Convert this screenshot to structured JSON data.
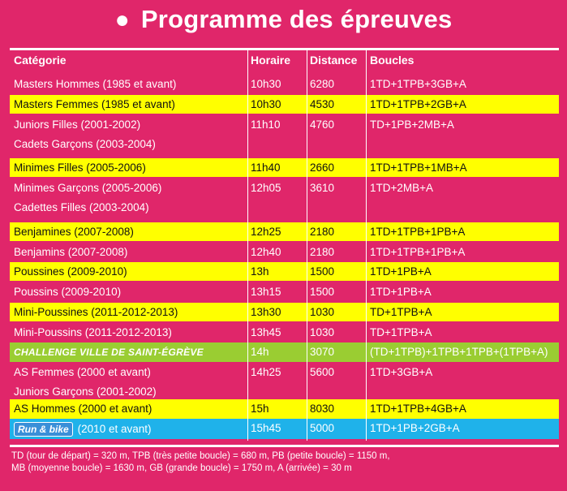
{
  "title": "Programme des épreuves",
  "columns": [
    "Catégorie",
    "Horaire",
    "Distance",
    "Boucles"
  ],
  "rows": [
    {
      "cat": "Masters Hommes (1985 et avant)",
      "cat2": "",
      "time": "10h30",
      "dist": "6280",
      "loops": "1TD+1TPB+3GB+A",
      "hl": "none"
    },
    {
      "cat": "Masters Femmes (1985 et avant)",
      "cat2": "",
      "time": "10h30",
      "dist": "4530",
      "loops": "1TD+1TPB+2GB+A",
      "hl": "yellow"
    },
    {
      "cat": "Juniors Filles (2001-2002)",
      "cat2": "Cadets Garçons (2003-2004)",
      "time": "11h10",
      "dist": "4760",
      "loops": "TD+1PB+2MB+A",
      "hl": "none"
    },
    {
      "cat": "Minimes Filles (2005-2006)",
      "cat2": "",
      "time": "11h40",
      "dist": "2660",
      "loops": "1TD+1TPB+1MB+A",
      "hl": "yellow"
    },
    {
      "cat": "Minimes Garçons (2005-2006)",
      "cat2": "Cadettes Filles (2003-2004)",
      "time": "12h05",
      "dist": "3610",
      "loops": "1TD+2MB+A",
      "hl": "none"
    },
    {
      "cat": "Benjamines (2007-2008)",
      "cat2": "",
      "time": "12h25",
      "dist": "2180",
      "loops": "1TD+1TPB+1PB+A",
      "hl": "yellow"
    },
    {
      "cat": "Benjamins (2007-2008)",
      "cat2": "",
      "time": "12h40",
      "dist": "2180",
      "loops": "1TD+1TPB+1PB+A",
      "hl": "none"
    },
    {
      "cat": "Poussines (2009-2010)",
      "cat2": "",
      "time": "13h",
      "dist": "1500",
      "loops": "1TD+1PB+A",
      "hl": "yellow"
    },
    {
      "cat": "Poussins (2009-2010)",
      "cat2": "",
      "time": "13h15",
      "dist": "1500",
      "loops": "1TD+1PB+A",
      "hl": "none"
    },
    {
      "cat": "Mini-Poussines (2011-2012-2013)",
      "cat2": "",
      "time": "13h30",
      "dist": "1030",
      "loops": "TD+1TPB+A",
      "hl": "yellow"
    },
    {
      "cat": "Mini-Poussins (2011-2012-2013)",
      "cat2": "",
      "time": "13h45",
      "dist": "1030",
      "loops": "TD+1TPB+A",
      "hl": "none"
    },
    {
      "cat": "CHALLENGE VILLE DE SAINT-ÉGRÈVE",
      "cat2": "",
      "time": "14h",
      "dist": "3070",
      "loops": "(TD+1TPB)+1TPB+1TPB+(1TPB+A)",
      "hl": "green"
    },
    {
      "cat": "AS Femmes (2000 et avant)",
      "cat2": "Juniors Garçons (2001-2002)",
      "time": "14h25",
      "dist": "5600",
      "loops": "1TD+3GB+A",
      "hl": "none"
    },
    {
      "cat": "AS Hommes (2000 et avant)",
      "cat2": "",
      "time": "15h",
      "dist": "8030",
      "loops": "1TD+1TPB+4GB+A",
      "hl": "yellow"
    },
    {
      "cat": "(2010 et avant)",
      "cat2": "",
      "logo": "Run & bike",
      "time": "15h45",
      "dist": "5000",
      "loops": "1TD+1PB+2GB+A",
      "hl": "blue"
    }
  ],
  "footer": {
    "line1": "TD (tour de départ) = 320 m, TPB (très petite boucle) = 680 m, PB (petite boucle) = 1150 m,",
    "line2": "MB (moyenne boucle) = 1630 m, GB (grande boucle) = 1750 m, A (arrivée) = 30 m"
  },
  "colors": {
    "background": "#e0266a",
    "yellow": "#ffff00",
    "green": "#9acd32",
    "blue": "#1fb2ea"
  }
}
